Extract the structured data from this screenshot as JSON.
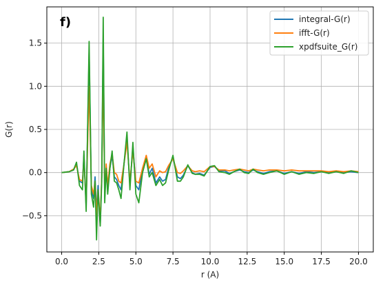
{
  "chart_data": {
    "type": "line",
    "panel_label": "f)",
    "title": "",
    "xlabel": "r (A)",
    "ylabel": "G(r)",
    "xlim": [
      -1.0,
      21.0
    ],
    "ylim": [
      -0.92,
      1.92
    ],
    "x_ticks": [
      0.0,
      2.5,
      5.0,
      7.5,
      10.0,
      12.5,
      15.0,
      17.5,
      20.0
    ],
    "x_tick_labels": [
      "0.0",
      "2.5",
      "5.0",
      "7.5",
      "10.0",
      "12.5",
      "15.0",
      "17.5",
      "20.0"
    ],
    "y_ticks": [
      -0.5,
      0.0,
      0.5,
      1.0,
      1.5
    ],
    "y_tick_labels": [
      "−0.5",
      "0.0",
      "0.5",
      "1.0",
      "1.5"
    ],
    "grid": true,
    "legend_position": "top-right",
    "series": [
      {
        "name": "integral-G(r)",
        "color": "#1f77b4",
        "points": [
          [
            0.0,
            0.0
          ],
          [
            0.5,
            0.01
          ],
          [
            0.8,
            0.03
          ],
          [
            1.0,
            0.1
          ],
          [
            1.2,
            -0.1
          ],
          [
            1.4,
            -0.12
          ],
          [
            1.5,
            0.2
          ],
          [
            1.65,
            -0.4
          ],
          [
            1.85,
            1.4
          ],
          [
            2.0,
            -0.2
          ],
          [
            2.15,
            -0.3
          ],
          [
            2.25,
            -0.05
          ],
          [
            2.35,
            -0.45
          ],
          [
            2.45,
            -0.15
          ],
          [
            2.6,
            -0.6
          ],
          [
            2.7,
            -0.05
          ],
          [
            2.8,
            1.55
          ],
          [
            2.9,
            -0.3
          ],
          [
            3.0,
            0.05
          ],
          [
            3.1,
            -0.2
          ],
          [
            3.25,
            0.05
          ],
          [
            3.4,
            0.2
          ],
          [
            3.55,
            -0.05
          ],
          [
            3.7,
            -0.08
          ],
          [
            3.85,
            -0.15
          ],
          [
            4.0,
            -0.2
          ],
          [
            4.2,
            0.1
          ],
          [
            4.4,
            0.4
          ],
          [
            4.6,
            -0.15
          ],
          [
            4.8,
            0.3
          ],
          [
            5.0,
            -0.15
          ],
          [
            5.2,
            -0.2
          ],
          [
            5.45,
            0.05
          ],
          [
            5.7,
            0.18
          ],
          [
            5.9,
            -0.02
          ],
          [
            6.1,
            0.05
          ],
          [
            6.35,
            -0.12
          ],
          [
            6.6,
            -0.05
          ],
          [
            6.8,
            -0.1
          ],
          [
            7.0,
            -0.08
          ],
          [
            7.2,
            0.05
          ],
          [
            7.5,
            0.18
          ],
          [
            7.8,
            -0.05
          ],
          [
            8.0,
            -0.07
          ],
          [
            8.2,
            -0.03
          ],
          [
            8.5,
            0.08
          ],
          [
            8.8,
            0.0
          ],
          [
            9.0,
            -0.02
          ],
          [
            9.3,
            -0.01
          ],
          [
            9.6,
            -0.03
          ],
          [
            10.0,
            0.06
          ],
          [
            10.3,
            0.07
          ],
          [
            10.6,
            0.02
          ],
          [
            11.0,
            0.02
          ],
          [
            11.3,
            -0.01
          ],
          [
            11.6,
            0.01
          ],
          [
            12.0,
            0.03
          ],
          [
            12.3,
            0.01
          ],
          [
            12.6,
            0.0
          ],
          [
            12.9,
            0.03
          ],
          [
            13.2,
            0.01
          ],
          [
            13.6,
            -0.01
          ],
          [
            14.0,
            0.01
          ],
          [
            14.5,
            0.02
          ],
          [
            15.0,
            -0.01
          ],
          [
            15.5,
            0.01
          ],
          [
            16.0,
            -0.01
          ],
          [
            16.5,
            0.01
          ],
          [
            17.0,
            0.0
          ],
          [
            17.5,
            0.01
          ],
          [
            18.0,
            0.0
          ],
          [
            18.5,
            0.01
          ],
          [
            19.0,
            0.0
          ],
          [
            19.5,
            0.01
          ],
          [
            20.0,
            0.0
          ]
        ]
      },
      {
        "name": "ifft-G(r)",
        "color": "#ff7f0e",
        "points": [
          [
            0.0,
            0.0
          ],
          [
            0.5,
            0.01
          ],
          [
            0.8,
            0.04
          ],
          [
            1.0,
            0.08
          ],
          [
            1.2,
            -0.08
          ],
          [
            1.4,
            -0.1
          ],
          [
            1.5,
            0.15
          ],
          [
            1.65,
            -0.35
          ],
          [
            1.85,
            1.0
          ],
          [
            2.0,
            -0.15
          ],
          [
            2.15,
            -0.25
          ],
          [
            2.25,
            -0.1
          ],
          [
            2.35,
            -0.5
          ],
          [
            2.45,
            -0.2
          ],
          [
            2.6,
            -0.55
          ],
          [
            2.7,
            -0.05
          ],
          [
            2.8,
            1.2
          ],
          [
            2.9,
            -0.25
          ],
          [
            3.0,
            0.1
          ],
          [
            3.1,
            -0.15
          ],
          [
            3.25,
            0.1
          ],
          [
            3.4,
            0.22
          ],
          [
            3.55,
            0.0
          ],
          [
            3.7,
            -0.02
          ],
          [
            3.85,
            -0.1
          ],
          [
            4.0,
            -0.12
          ],
          [
            4.2,
            0.1
          ],
          [
            4.4,
            0.35
          ],
          [
            4.6,
            -0.1
          ],
          [
            4.8,
            0.25
          ],
          [
            5.0,
            -0.1
          ],
          [
            5.2,
            -0.12
          ],
          [
            5.45,
            0.05
          ],
          [
            5.7,
            0.2
          ],
          [
            5.9,
            0.05
          ],
          [
            6.1,
            0.1
          ],
          [
            6.35,
            -0.05
          ],
          [
            6.6,
            0.02
          ],
          [
            6.8,
            0.0
          ],
          [
            7.0,
            0.01
          ],
          [
            7.2,
            0.08
          ],
          [
            7.5,
            0.16
          ],
          [
            7.8,
            0.0
          ],
          [
            8.0,
            -0.01
          ],
          [
            8.2,
            0.02
          ],
          [
            8.5,
            0.08
          ],
          [
            8.8,
            0.02
          ],
          [
            9.0,
            0.01
          ],
          [
            9.3,
            0.02
          ],
          [
            9.6,
            0.01
          ],
          [
            10.0,
            0.07
          ],
          [
            10.3,
            0.07
          ],
          [
            10.6,
            0.03
          ],
          [
            11.0,
            0.03
          ],
          [
            11.3,
            0.02
          ],
          [
            11.6,
            0.03
          ],
          [
            12.0,
            0.04
          ],
          [
            12.3,
            0.03
          ],
          [
            12.6,
            0.02
          ],
          [
            12.9,
            0.04
          ],
          [
            13.2,
            0.03
          ],
          [
            13.6,
            0.02
          ],
          [
            14.0,
            0.03
          ],
          [
            14.5,
            0.03
          ],
          [
            15.0,
            0.02
          ],
          [
            15.5,
            0.03
          ],
          [
            16.0,
            0.02
          ],
          [
            16.5,
            0.02
          ],
          [
            17.0,
            0.02
          ],
          [
            17.5,
            0.02
          ],
          [
            18.0,
            0.01
          ],
          [
            18.5,
            0.02
          ],
          [
            19.0,
            0.01
          ],
          [
            19.5,
            0.02
          ],
          [
            20.0,
            0.01
          ]
        ]
      },
      {
        "name": "xpdfsuite_G(r)",
        "color": "#2ca02c",
        "points": [
          [
            0.0,
            0.0
          ],
          [
            0.5,
            0.01
          ],
          [
            0.8,
            0.03
          ],
          [
            1.0,
            0.12
          ],
          [
            1.2,
            -0.15
          ],
          [
            1.4,
            -0.2
          ],
          [
            1.5,
            0.25
          ],
          [
            1.65,
            -0.45
          ],
          [
            1.85,
            1.52
          ],
          [
            2.0,
            -0.25
          ],
          [
            2.15,
            -0.4
          ],
          [
            2.25,
            -0.1
          ],
          [
            2.35,
            -0.78
          ],
          [
            2.45,
            -0.2
          ],
          [
            2.6,
            -0.62
          ],
          [
            2.7,
            -0.1
          ],
          [
            2.8,
            1.8
          ],
          [
            2.9,
            -0.35
          ],
          [
            3.0,
            0.05
          ],
          [
            3.1,
            -0.25
          ],
          [
            3.25,
            0.05
          ],
          [
            3.4,
            0.25
          ],
          [
            3.55,
            -0.1
          ],
          [
            3.7,
            -0.12
          ],
          [
            3.85,
            -0.2
          ],
          [
            4.0,
            -0.3
          ],
          [
            4.2,
            0.1
          ],
          [
            4.4,
            0.47
          ],
          [
            4.6,
            -0.2
          ],
          [
            4.8,
            0.35
          ],
          [
            5.0,
            -0.25
          ],
          [
            5.2,
            -0.35
          ],
          [
            5.45,
            0.0
          ],
          [
            5.7,
            0.16
          ],
          [
            5.9,
            -0.05
          ],
          [
            6.1,
            0.0
          ],
          [
            6.35,
            -0.15
          ],
          [
            6.6,
            -0.08
          ],
          [
            6.8,
            -0.15
          ],
          [
            7.0,
            -0.12
          ],
          [
            7.2,
            0.02
          ],
          [
            7.5,
            0.2
          ],
          [
            7.8,
            -0.1
          ],
          [
            8.0,
            -0.1
          ],
          [
            8.2,
            -0.05
          ],
          [
            8.5,
            0.09
          ],
          [
            8.8,
            -0.01
          ],
          [
            9.0,
            -0.02
          ],
          [
            9.3,
            -0.02
          ],
          [
            9.6,
            -0.04
          ],
          [
            10.0,
            0.07
          ],
          [
            10.3,
            0.08
          ],
          [
            10.6,
            0.01
          ],
          [
            11.0,
            0.0
          ],
          [
            11.3,
            -0.02
          ],
          [
            11.6,
            0.01
          ],
          [
            12.0,
            0.04
          ],
          [
            12.3,
            0.0
          ],
          [
            12.6,
            -0.01
          ],
          [
            12.9,
            0.04
          ],
          [
            13.2,
            0.0
          ],
          [
            13.6,
            -0.02
          ],
          [
            14.0,
            0.0
          ],
          [
            14.5,
            0.02
          ],
          [
            15.0,
            -0.02
          ],
          [
            15.5,
            0.01
          ],
          [
            16.0,
            -0.02
          ],
          [
            16.5,
            0.0
          ],
          [
            17.0,
            -0.01
          ],
          [
            17.5,
            0.01
          ],
          [
            18.0,
            -0.01
          ],
          [
            18.5,
            0.01
          ],
          [
            19.0,
            -0.01
          ],
          [
            19.5,
            0.02
          ],
          [
            20.0,
            0.0
          ]
        ]
      }
    ]
  }
}
